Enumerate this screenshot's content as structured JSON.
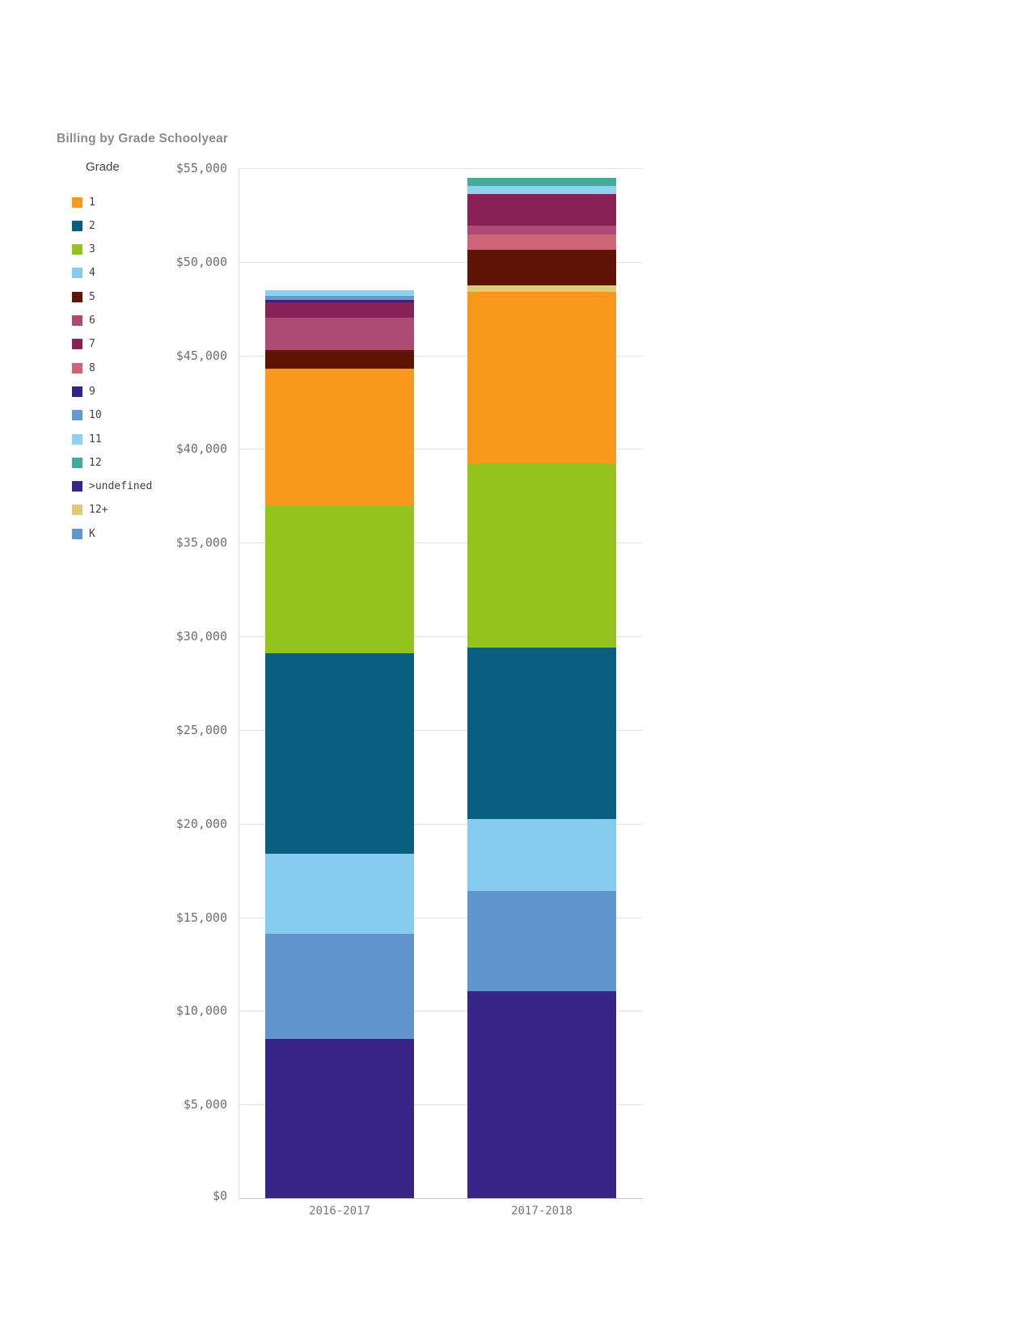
{
  "title": "Billing by Grade Schoolyear",
  "legend": {
    "title": "Grade",
    "items": [
      {
        "label": "1",
        "color": "#f8981d"
      },
      {
        "label": "2",
        "color": "#075e7f"
      },
      {
        "label": "3",
        "color": "#94c31d"
      },
      {
        "label": "4",
        "color": "#85cbee"
      },
      {
        "label": "5",
        "color": "#5e1505"
      },
      {
        "label": "6",
        "color": "#ad4a74"
      },
      {
        "label": "7",
        "color": "#882255"
      },
      {
        "label": "8",
        "color": "#cc6677"
      },
      {
        "label": "9",
        "color": "#332288"
      },
      {
        "label": "10",
        "color": "#6699cc"
      },
      {
        "label": "11",
        "color": "#8ed2f2"
      },
      {
        "label": "12",
        "color": "#44aa99"
      },
      {
        "label": ">undefined",
        "color": "#372688"
      },
      {
        "label": "12+",
        "color": "#ddcc77"
      },
      {
        "label": "K",
        "color": "#6095ce"
      }
    ]
  },
  "chart_data": {
    "type": "bar",
    "stacked": true,
    "title": "Billing by Grade Schoolyear",
    "legend_title": "Grade",
    "legend_position": "left",
    "grid": "horizontal",
    "categories": [
      "2016-2017",
      "2017-2018"
    ],
    "series": [
      {
        "name": "1",
        "color": "#f8981d",
        "values": [
          7300,
          9200
        ]
      },
      {
        "name": "2",
        "color": "#075e7f",
        "values": [
          10700,
          9150
        ]
      },
      {
        "name": "3",
        "color": "#94c31d",
        "values": [
          7900,
          9800
        ]
      },
      {
        "name": "4",
        "color": "#85cbee",
        "values": [
          4300,
          3850
        ]
      },
      {
        "name": "5",
        "color": "#5e1505",
        "values": [
          1000,
          1900
        ]
      },
      {
        "name": "6",
        "color": "#ad4a74",
        "values": [
          1700,
          500
        ]
      },
      {
        "name": "7",
        "color": "#882255",
        "values": [
          820,
          1650
        ]
      },
      {
        "name": "8",
        "color": "#cc6677",
        "values": [
          0,
          800
        ]
      },
      {
        "name": "9",
        "color": "#332288",
        "values": [
          130,
          0
        ]
      },
      {
        "name": "10",
        "color": "#6699cc",
        "values": [
          250,
          0
        ]
      },
      {
        "name": "11",
        "color": "#8ed2f2",
        "values": [
          280,
          430
        ]
      },
      {
        "name": "12",
        "color": "#44aa99",
        "values": [
          0,
          450
        ]
      },
      {
        "name": ">undefined",
        "color": "#372688",
        "values": [
          8500,
          11050
        ]
      },
      {
        "name": "12+",
        "color": "#ddcc77",
        "values": [
          0,
          350
        ]
      },
      {
        "name": "K",
        "color": "#6095ce",
        "values": [
          5600,
          5350
        ]
      }
    ],
    "stack_order_bottom_to_top": [
      ">undefined",
      "K",
      "4",
      "2",
      "3",
      "1",
      "12+",
      "5",
      "8",
      "6",
      "7",
      "9",
      "10",
      "11",
      "12"
    ],
    "totals": [
      48480,
      54480
    ],
    "ylim": [
      0,
      55000
    ],
    "xlabel": "",
    "ylabel": "",
    "y_ticks": [
      {
        "value": 0,
        "label": "$0"
      },
      {
        "value": 5000,
        "label": "$5,000"
      },
      {
        "value": 10000,
        "label": "$10,000"
      },
      {
        "value": 15000,
        "label": "$15,000"
      },
      {
        "value": 20000,
        "label": "$20,000"
      },
      {
        "value": 25000,
        "label": "$25,000"
      },
      {
        "value": 30000,
        "label": "$30,000"
      },
      {
        "value": 35000,
        "label": "$35,000"
      },
      {
        "value": 40000,
        "label": "$40,000"
      },
      {
        "value": 45000,
        "label": "$45,000"
      },
      {
        "value": 50000,
        "label": "$50,000"
      },
      {
        "value": 55000,
        "label": "$55,000"
      }
    ]
  },
  "colors": {
    "grid": "#e2e2e2",
    "axis": "#c6c6c6",
    "tick_label": "#6e6e6e",
    "x_label": "#757575",
    "title": "#8a8a8a",
    "legend_label": "#404040"
  }
}
